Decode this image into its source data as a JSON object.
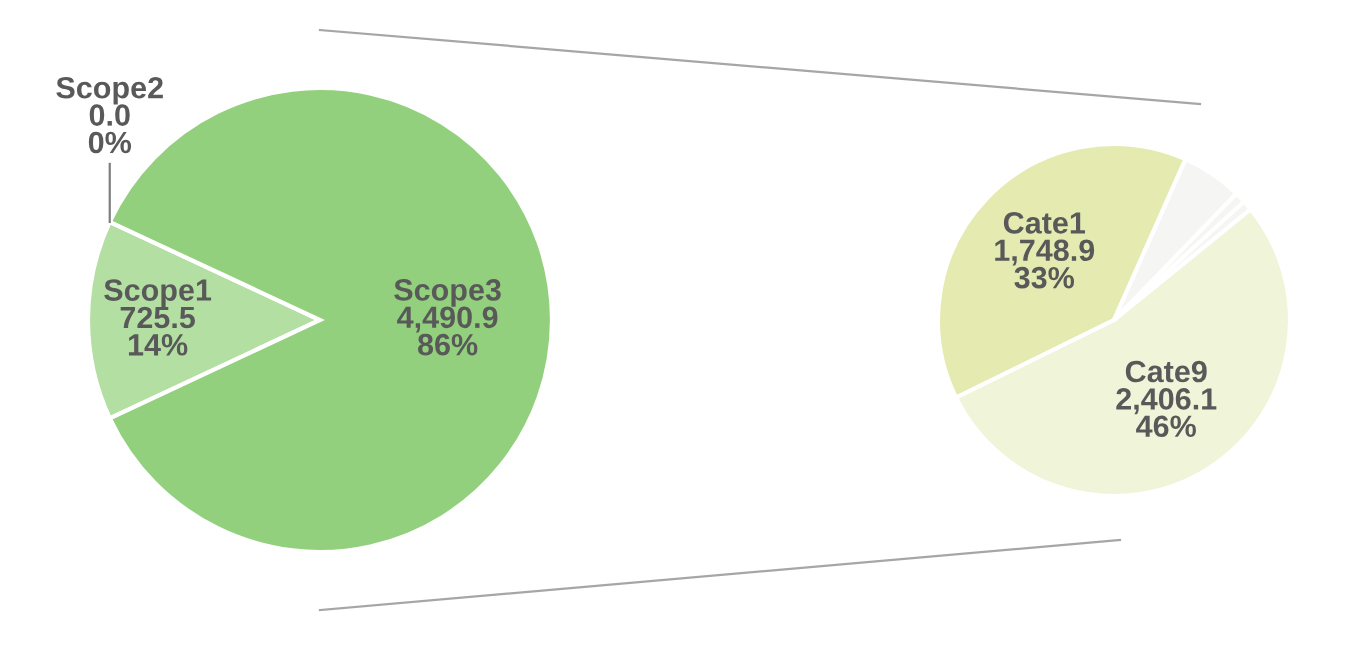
{
  "chart_data": [
    {
      "type": "pie",
      "categories": [
        "Scope2",
        "Scope1",
        "Scope3"
      ],
      "values": [
        0.0,
        725.5,
        4490.9
      ],
      "colors": [
        "#c8e6bb",
        "#b3dfa3",
        "#92d07d"
      ],
      "value_labels": [
        "0.0\n0%",
        "725.5\n14%",
        "4,490.9\n86%"
      ]
    },
    {
      "type": "pie",
      "categories": [
        "Cate1",
        "Cate9",
        null,
        null,
        null
      ],
      "values": [
        1748.9,
        2406.1,
        40.9,
        45,
        250
      ],
      "colors": [
        "#e5ebb0",
        "#f0f4d8",
        "#f5f5f3",
        "#f5f5f3",
        "#f5f5f3"
      ],
      "value_labels": [
        "1,748.9\n33%",
        "2,406.1\n46%",
        null,
        null,
        null
      ]
    }
  ]
}
